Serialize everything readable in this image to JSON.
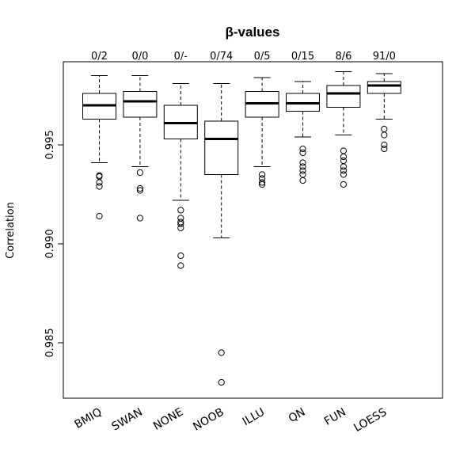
{
  "chart_data": {
    "type": "boxplot",
    "title": "β-values",
    "ylabel": "Correlation",
    "xlabel": "",
    "ylim": [
      0.9822,
      0.9992
    ],
    "yticks": [
      "0.985",
      "0.990",
      "0.995"
    ],
    "grid": false,
    "categories": [
      "BMIQ",
      "SWAN",
      "NONE",
      "NOOB",
      "ILLU",
      "QN",
      "FUN",
      "LOESS"
    ],
    "top_labels": [
      "0/2",
      "0/0",
      "0/-",
      "0/74",
      "0/5",
      "0/15",
      "8/6",
      "91/0"
    ],
    "boxes": [
      {
        "whisker_low": 0.9941,
        "q1": 0.9963,
        "median": 0.997,
        "q3": 0.9976,
        "whisker_high": 0.9985,
        "outliers": [
          0.99345,
          0.9934,
          0.9931,
          0.9929,
          0.9914
        ]
      },
      {
        "whisker_low": 0.9939,
        "q1": 0.9964,
        "median": 0.9972,
        "q3": 0.9977,
        "whisker_high": 0.9985,
        "outliers": [
          0.9936,
          0.9928,
          0.9927,
          0.9913
        ]
      },
      {
        "whisker_low": 0.9922,
        "q1": 0.9953,
        "median": 0.9961,
        "q3": 0.997,
        "whisker_high": 0.9981,
        "outliers": [
          0.9917,
          0.9913,
          0.9911,
          0.991,
          0.9908,
          0.9894,
          0.9889
        ]
      },
      {
        "whisker_low": 0.9903,
        "q1": 0.9935,
        "median": 0.9953,
        "q3": 0.9962,
        "whisker_high": 0.9981,
        "outliers": [
          0.9845,
          0.983
        ]
      },
      {
        "whisker_low": 0.9939,
        "q1": 0.9964,
        "median": 0.9971,
        "q3": 0.9977,
        "whisker_high": 0.9984,
        "outliers": [
          0.9935,
          0.9933,
          0.9931,
          0.993
        ]
      },
      {
        "whisker_low": 0.9954,
        "q1": 0.9967,
        "median": 0.9971,
        "q3": 0.9976,
        "whisker_high": 0.9982,
        "outliers": [
          0.9948,
          0.9946,
          0.9941,
          0.9939,
          0.9937,
          0.9935,
          0.9932
        ]
      },
      {
        "whisker_low": 0.9955,
        "q1": 0.9969,
        "median": 0.9976,
        "q3": 0.998,
        "whisker_high": 0.9987,
        "outliers": [
          0.9947,
          0.9944,
          0.9942,
          0.9939,
          0.9937,
          0.9935,
          0.993
        ]
      },
      {
        "whisker_low": 0.9963,
        "q1": 0.9976,
        "median": 0.998,
        "q3": 0.9982,
        "whisker_high": 0.9986,
        "outliers": [
          0.9958,
          0.9955,
          0.995,
          0.9948
        ]
      }
    ]
  }
}
